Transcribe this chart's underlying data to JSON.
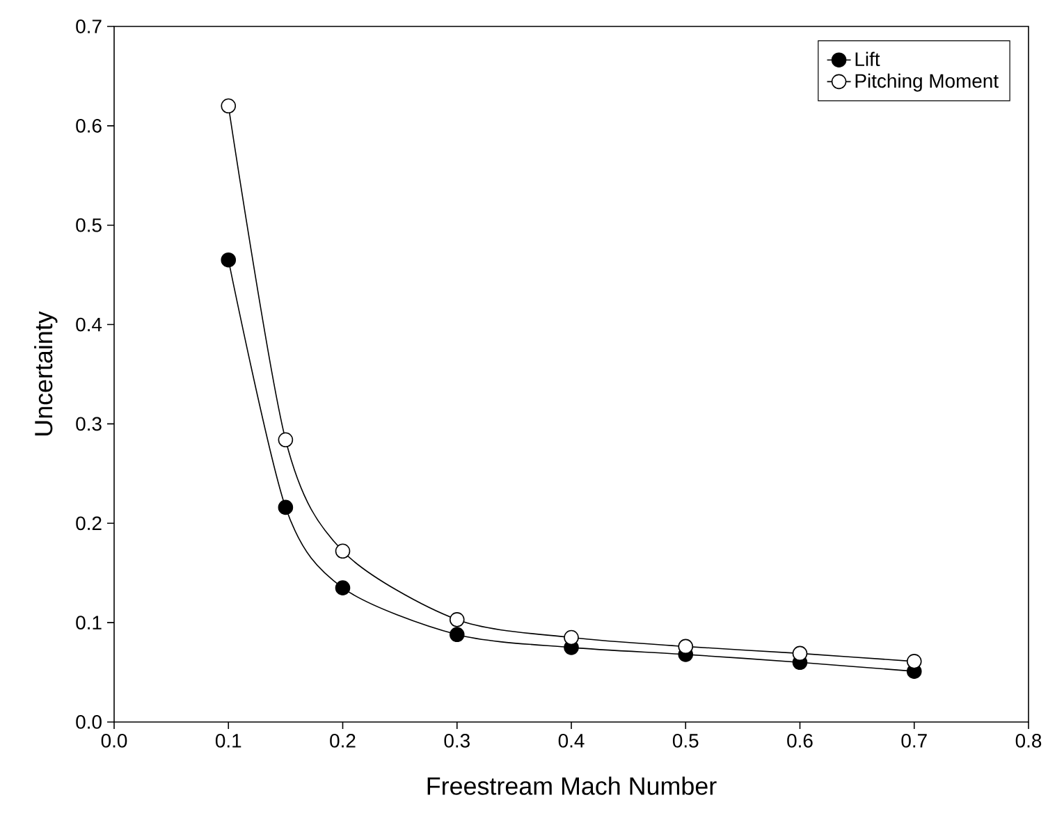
{
  "chart_data": {
    "type": "line",
    "xlabel": "Freestream Mach Number",
    "ylabel": "Uncertainty",
    "x": [
      0.1,
      0.15,
      0.2,
      0.3,
      0.4,
      0.5,
      0.6,
      0.7
    ],
    "series": [
      {
        "name": "Lift",
        "color": "#000000",
        "values": [
          0.465,
          0.216,
          0.135,
          0.088,
          0.075,
          0.068,
          0.06,
          0.051
        ]
      },
      {
        "name": "Pitching Moment",
        "color": "#ffffff",
        "values": [
          0.62,
          0.284,
          0.172,
          0.103,
          0.085,
          0.076,
          0.069,
          0.061
        ]
      }
    ],
    "xlim": [
      0.0,
      0.8
    ],
    "xticks": [
      {
        "value": 0.0,
        "label": "0.0"
      },
      0.1,
      0.2,
      0.3,
      0.4,
      0.5,
      0.6,
      0.7,
      0.8
    ],
    "ylim": [
      0.0,
      0.7
    ],
    "yticks": [
      {
        "value": 0.0,
        "label": "0.0"
      },
      0.1,
      0.2,
      0.3,
      0.4,
      0.5,
      0.6,
      0.7
    ],
    "marker": "circle",
    "line_style": "solid",
    "legend": "top right",
    "grid": false
  }
}
